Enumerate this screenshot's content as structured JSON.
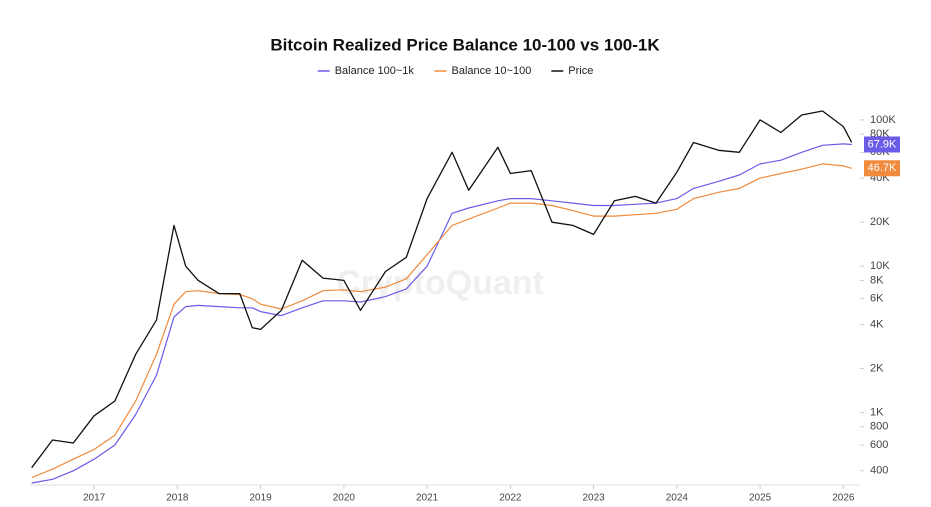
{
  "chart_data": {
    "type": "line",
    "title": "Bitcoin Realized Price Balance 10-100 vs 100-1K",
    "watermark": "CryptoQuant",
    "log_scale": true,
    "legend": "top",
    "x": [
      2016.25,
      2016.5,
      2016.75,
      2017.0,
      2017.25,
      2017.5,
      2017.75,
      2017.96,
      2018.1,
      2018.25,
      2018.5,
      2018.75,
      2018.9,
      2019.0,
      2019.25,
      2019.5,
      2019.75,
      2020.0,
      2020.2,
      2020.5,
      2020.75,
      2021.0,
      2021.3,
      2021.5,
      2021.85,
      2022.0,
      2022.25,
      2022.5,
      2022.75,
      2023.0,
      2023.25,
      2023.5,
      2023.75,
      2024.0,
      2024.2,
      2024.5,
      2024.75,
      2025.0,
      2025.25,
      2025.5,
      2025.75,
      2026.0,
      2026.1
    ],
    "xlim": [
      2016.23,
      2026.2
    ],
    "xticks": [
      2017,
      2018,
      2019,
      2020,
      2021,
      2022,
      2023,
      2024,
      2025,
      2026
    ],
    "ylim": [
      320,
      160000
    ],
    "yticks": [
      400,
      600,
      800,
      {
        "value": 1000,
        "label": "1K"
      },
      {
        "value": 2000,
        "label": "2K"
      },
      {
        "value": 4000,
        "label": "4K"
      },
      {
        "value": 6000,
        "label": "6K"
      },
      {
        "value": 8000,
        "label": "8K"
      },
      {
        "value": 10000,
        "label": "10K"
      },
      {
        "value": 20000,
        "label": "20K"
      },
      {
        "value": 40000,
        "label": "40K"
      },
      {
        "value": 60000,
        "label": "60K"
      },
      {
        "value": 80000,
        "label": "80K"
      },
      {
        "value": 100000,
        "label": "100K"
      }
    ],
    "series": [
      {
        "name": "Balance 100~1k",
        "color": "#6b5ce7",
        "values": [
          330,
          350,
          400,
          480,
          600,
          970,
          1800,
          4500,
          5300,
          5400,
          5300,
          5200,
          5200,
          4900,
          4600,
          5200,
          5800,
          5800,
          5700,
          6200,
          7000,
          10000,
          23000,
          25000,
          28000,
          29000,
          29000,
          28000,
          27000,
          26000,
          26000,
          26500,
          27000,
          29000,
          34000,
          38000,
          42000,
          50000,
          53000,
          60000,
          67000,
          68500,
          67900
        ],
        "value_labels": [
          null,
          null,
          null,
          null,
          null,
          null,
          null,
          null,
          null,
          null,
          null,
          null,
          null,
          null,
          null,
          null,
          null,
          null,
          null,
          null,
          null,
          null,
          null,
          null,
          null,
          null,
          null,
          null,
          null,
          null,
          null,
          null,
          null,
          null,
          null,
          null,
          null,
          null,
          null,
          null,
          null,
          null,
          "67.9K"
        ]
      },
      {
        "name": "Balance 10~100",
        "color": "#f08a3c",
        "values": [
          360,
          410,
          480,
          560,
          700,
          1200,
          2500,
          5500,
          6700,
          6800,
          6500,
          6400,
          6000,
          5500,
          5100,
          5800,
          6800,
          6900,
          6700,
          7200,
          8200,
          12000,
          19000,
          21000,
          25000,
          27000,
          27000,
          26000,
          24000,
          22000,
          22000,
          22500,
          23000,
          24500,
          29000,
          32000,
          34000,
          40000,
          43000,
          46000,
          50000,
          48500,
          46700
        ],
        "value_labels": [
          null,
          null,
          null,
          null,
          null,
          null,
          null,
          null,
          null,
          null,
          null,
          null,
          null,
          null,
          null,
          null,
          null,
          null,
          null,
          null,
          null,
          null,
          null,
          null,
          null,
          null,
          null,
          null,
          null,
          null,
          null,
          null,
          null,
          null,
          null,
          null,
          null,
          null,
          null,
          null,
          null,
          null,
          "46.7K"
        ]
      },
      {
        "name": "Price",
        "color": "#111111",
        "values": [
          420,
          650,
          620,
          950,
          1200,
          2500,
          4300,
          19000,
          10000,
          8000,
          6500,
          6500,
          3800,
          3700,
          5000,
          11000,
          8300,
          8000,
          5000,
          9200,
          11500,
          29000,
          60000,
          33000,
          65000,
          43000,
          45000,
          20000,
          19000,
          16500,
          28000,
          30000,
          27000,
          44000,
          70000,
          62000,
          60000,
          100000,
          82000,
          108000,
          115000,
          90000,
          70000
        ]
      }
    ]
  }
}
